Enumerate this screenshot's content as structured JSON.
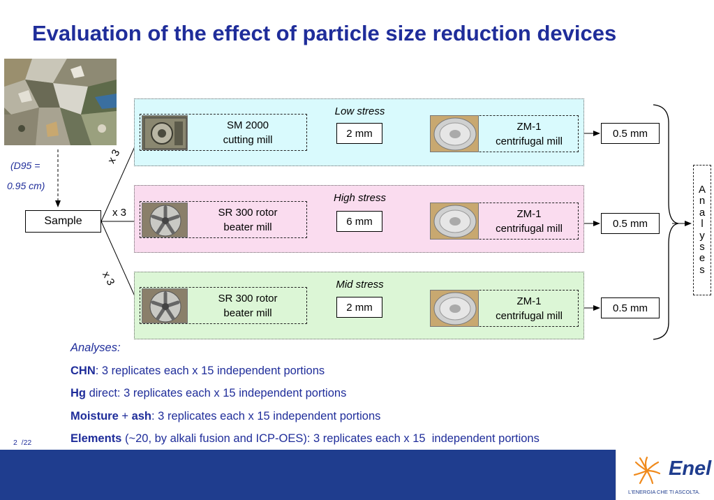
{
  "title": "Evaluation of the effect of particle size reduction devices",
  "sample": {
    "d95_line1": "(D95 =",
    "d95_line2": "0.95 cm)",
    "label": "Sample"
  },
  "branch_labels": [
    "x 3",
    "x 3",
    "x 3"
  ],
  "panels": [
    {
      "title": "Low stress",
      "mill1": "SM 2000\ncutting mill",
      "size": "2 mm",
      "mill2": "ZM-1\ncentrifugal mill",
      "output": "0.5 mm"
    },
    {
      "title": "High stress",
      "mill1": "SR 300 rotor\nbeater mill",
      "size": "6 mm",
      "mill2": "ZM-1\ncentrifugal mill",
      "output": "0.5 mm"
    },
    {
      "title": "Mid stress",
      "mill1": "SR 300 rotor\nbeater mill",
      "size": "2 mm",
      "mill2": "ZM-1\ncentrifugal mill",
      "output": "0.5 mm"
    }
  ],
  "analyses_vertical": [
    "A",
    "n",
    "a",
    "l",
    "y",
    "s",
    "e",
    "s"
  ],
  "notes": {
    "header": "Analyses:",
    "lines": [
      {
        "bold": "CHN",
        "text": ": 3 replicates each x 15 independent portions"
      },
      {
        "bold": "Hg",
        "text": " direct: 3 replicates each x 15 independent portions"
      },
      {
        "bold": "Moisture",
        "mid": " + ",
        "bold2": "ash",
        "text": ": 3 replicates each x 15 independent portions"
      },
      {
        "bold": "Elements",
        "text": " (~20, by alkali fusion and ICP-OES): 3 replicates each x 15  independent portions"
      }
    ]
  },
  "page_number": "2  /22",
  "footer": {
    "brand": "Enel",
    "tagline": "L'ENERGIA CHE TI ASCOLTA."
  },
  "colors": {
    "title_blue": "#1f2d9a",
    "low_stress_bg": "#d9fafd",
    "high_stress_bg": "#fadcef",
    "mid_stress_bg": "#dcf6d6",
    "footer_blue": "#1f3d8e",
    "enel_orange": "#f08a1c"
  }
}
